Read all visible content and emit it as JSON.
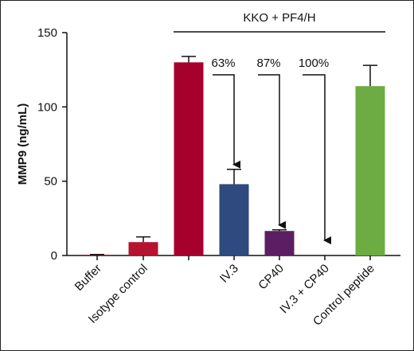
{
  "chart_data": {
    "type": "bar",
    "ylabel": "MMP9 (ng/mL)",
    "ylim": [
      0,
      150
    ],
    "yticks": [
      0,
      50,
      100,
      150
    ],
    "grid": false,
    "categories": [
      "Buffer",
      "Isotype control",
      "",
      "IV.3",
      "CP40",
      "IV.3 + CP40",
      "Control peptide"
    ],
    "values": [
      0.5,
      9,
      130,
      48,
      16.5,
      0,
      114
    ],
    "errors": [
      0.2,
      3.5,
      4,
      10,
      0.8,
      0,
      14
    ],
    "colors": [
      "#a6192e",
      "#b5132f",
      "#a6002c",
      "#2e4a7e",
      "#5c1e62",
      "#ffffff",
      "#6cac43"
    ],
    "group_label": "KKO + PF4/H",
    "annotations": [
      {
        "text": "63%",
        "from": 2,
        "to": 3
      },
      {
        "text": "87%",
        "from": 2,
        "to": 4
      },
      {
        "text": "100%",
        "from": 2,
        "to": 5
      }
    ]
  }
}
